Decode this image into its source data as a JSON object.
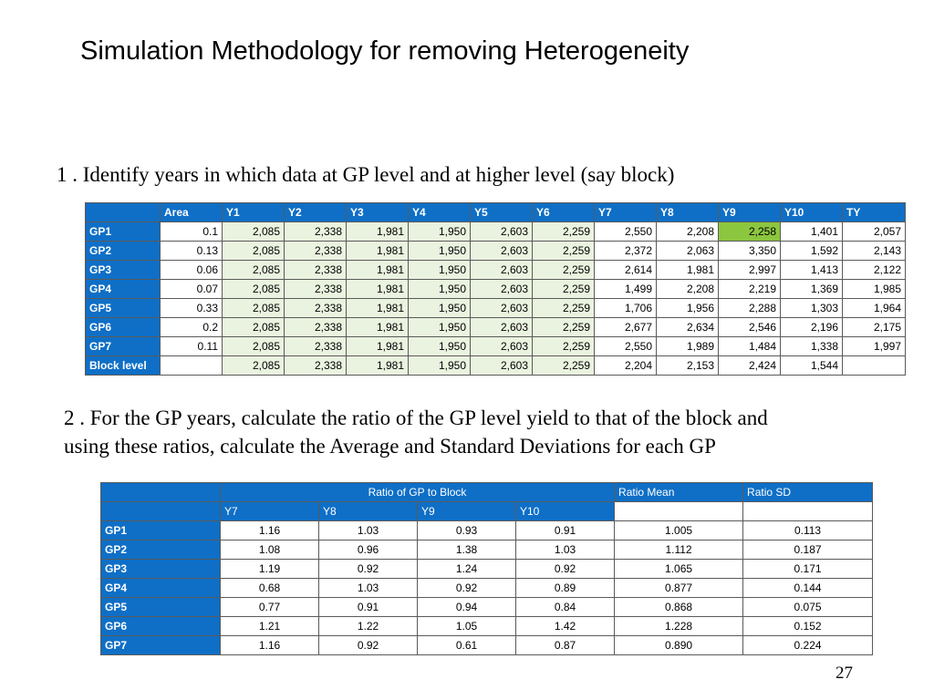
{
  "title": "Simulation Methodology for removing Heterogeneity",
  "step1": "1 . Identify years in which data at GP level and at higher level (say block)",
  "step2_line1": "2 . For the GP years, calculate the ratio of the GP level yield to that of the block and",
  "step2_line2": "using these ratios, calculate the Average and Standard Deviations for each GP",
  "table1": {
    "headers": [
      "",
      "Area",
      "Y1",
      "Y2",
      "Y3",
      "Y4",
      "Y5",
      "Y6",
      "Y7",
      "Y8",
      "Y9",
      "Y10",
      "TY"
    ],
    "rows": [
      {
        "label": "GP1",
        "cells": [
          "0.1",
          "2,085",
          "2,338",
          "1,981",
          "1,950",
          "2,603",
          "2,259",
          "2,550",
          "2,208",
          "2,258",
          "1,401",
          "2,057"
        ]
      },
      {
        "label": "GP2",
        "cells": [
          "0.13",
          "2,085",
          "2,338",
          "1,981",
          "1,950",
          "2,603",
          "2,259",
          "2,372",
          "2,063",
          "3,350",
          "1,592",
          "2,143"
        ]
      },
      {
        "label": "GP3",
        "cells": [
          "0.06",
          "2,085",
          "2,338",
          "1,981",
          "1,950",
          "2,603",
          "2,259",
          "2,614",
          "1,981",
          "2,997",
          "1,413",
          "2,122"
        ]
      },
      {
        "label": "GP4",
        "cells": [
          "0.07",
          "2,085",
          "2,338",
          "1,981",
          "1,950",
          "2,603",
          "2,259",
          "1,499",
          "2,208",
          "2,219",
          "1,369",
          "1,985"
        ]
      },
      {
        "label": "GP5",
        "cells": [
          "0.33",
          "2,085",
          "2,338",
          "1,981",
          "1,950",
          "2,603",
          "2,259",
          "1,706",
          "1,956",
          "2,288",
          "1,303",
          "1,964"
        ]
      },
      {
        "label": "GP6",
        "cells": [
          "0.2",
          "2,085",
          "2,338",
          "1,981",
          "1,950",
          "2,603",
          "2,259",
          "2,677",
          "2,634",
          "2,546",
          "2,196",
          "2,175"
        ]
      },
      {
        "label": "GP7",
        "cells": [
          "0.11",
          "2,085",
          "2,338",
          "1,981",
          "1,950",
          "2,603",
          "2,259",
          "2,550",
          "1,989",
          "1,484",
          "1,338",
          "1,997"
        ]
      },
      {
        "label": "Block level",
        "cells": [
          "",
          "2,085",
          "2,338",
          "1,981",
          "1,950",
          "2,603",
          "2,259",
          "2,204",
          "2,153",
          "2,424",
          "1,544",
          ""
        ]
      }
    ],
    "highlight_color": "#8cc63f",
    "shade_color": "#eaf3df"
  },
  "table2": {
    "group_header": "Ratio of GP to Block",
    "mean_header": "Ratio Mean",
    "sd_header": "Ratio SD",
    "year_headers": [
      "Y7",
      "Y8",
      "Y9",
      "Y10"
    ],
    "rows": [
      {
        "label": "GP1",
        "cells": [
          "1.16",
          "1.03",
          "0.93",
          "0.91",
          "1.005",
          "0.113"
        ]
      },
      {
        "label": "GP2",
        "cells": [
          "1.08",
          "0.96",
          "1.38",
          "1.03",
          "1.112",
          "0.187"
        ]
      },
      {
        "label": "GP3",
        "cells": [
          "1.19",
          "0.92",
          "1.24",
          "0.92",
          "1.065",
          "0.171"
        ]
      },
      {
        "label": "GP4",
        "cells": [
          "0.68",
          "1.03",
          "0.92",
          "0.89",
          "0.877",
          "0.144"
        ]
      },
      {
        "label": "GP5",
        "cells": [
          "0.77",
          "0.91",
          "0.94",
          "0.84",
          "0.868",
          "0.075"
        ]
      },
      {
        "label": "GP6",
        "cells": [
          "1.21",
          "1.22",
          "1.05",
          "1.42",
          "1.228",
          "0.152"
        ]
      },
      {
        "label": "GP7",
        "cells": [
          "1.16",
          "0.92",
          "0.61",
          "0.87",
          "0.890",
          "0.224"
        ]
      }
    ]
  },
  "header_color": "#0f6fc6",
  "page_number": "27"
}
